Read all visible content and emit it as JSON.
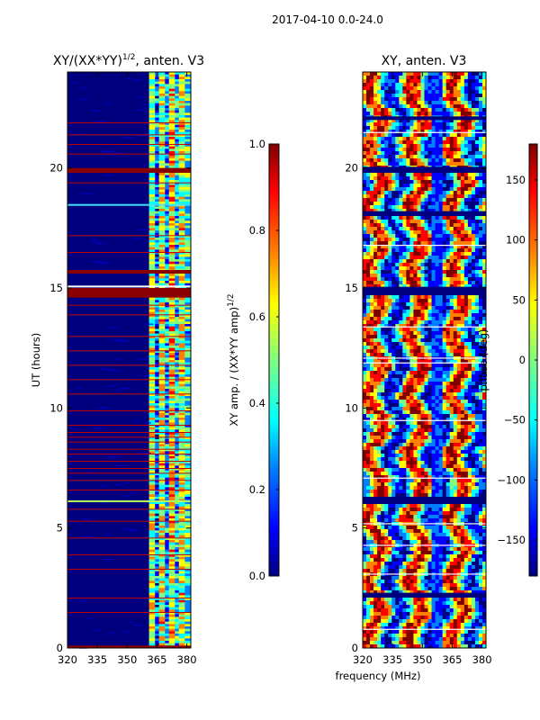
{
  "suptitle": "2017-04-10 0.0-24.0",
  "xlabel": "frequency (MHz)",
  "colors": {
    "cmap": [
      "#00007f",
      "#0000ff",
      "#0080ff",
      "#00ffff",
      "#80ff80",
      "#ffff00",
      "#ff8000",
      "#ff0000",
      "#7f0000"
    ],
    "background": "#ffffff"
  },
  "chart_data": [
    {
      "type": "heatmap",
      "title": "XY/(XX*YY)",
      "title_superscript": "1/2",
      "title_suffix": ", anten. V3",
      "xlabel": "",
      "ylabel": "UT (hours)",
      "xlim": [
        320,
        382
      ],
      "ylim": [
        0,
        24
      ],
      "xticks": [
        320,
        335,
        350,
        365,
        380
      ],
      "yticks": [
        0,
        5,
        10,
        15,
        20
      ],
      "colorbar": {
        "label": "XY amp. / (XX*YY amp)",
        "label_superscript": "1/2",
        "range": [
          0.0,
          1.0
        ],
        "ticks": [
          "0.0",
          "0.2",
          "0.4",
          "0.6",
          "0.8",
          "1.0"
        ]
      },
      "description_values": {
        "saturated_hour_bands": [
          [
            14.6,
            15.0
          ],
          [
            19.8,
            20.0
          ],
          [
            0.0,
            0.1
          ]
        ],
        "active_freq_range_MHz": [
          360,
          382
        ]
      }
    },
    {
      "type": "heatmap",
      "title": "XY, anten. V3",
      "xlabel": "frequency (MHz)",
      "ylabel": "",
      "xlim": [
        320,
        382
      ],
      "ylim": [
        0,
        24
      ],
      "xticks": [
        320,
        335,
        350,
        365,
        380
      ],
      "yticks": [
        0,
        5,
        10,
        15,
        20
      ],
      "colorbar": {
        "label": "phase (deg)",
        "range": [
          -180,
          180
        ],
        "ticks": [
          "150",
          "100",
          "50",
          "0",
          "−50",
          "−100",
          "−150"
        ]
      }
    }
  ]
}
